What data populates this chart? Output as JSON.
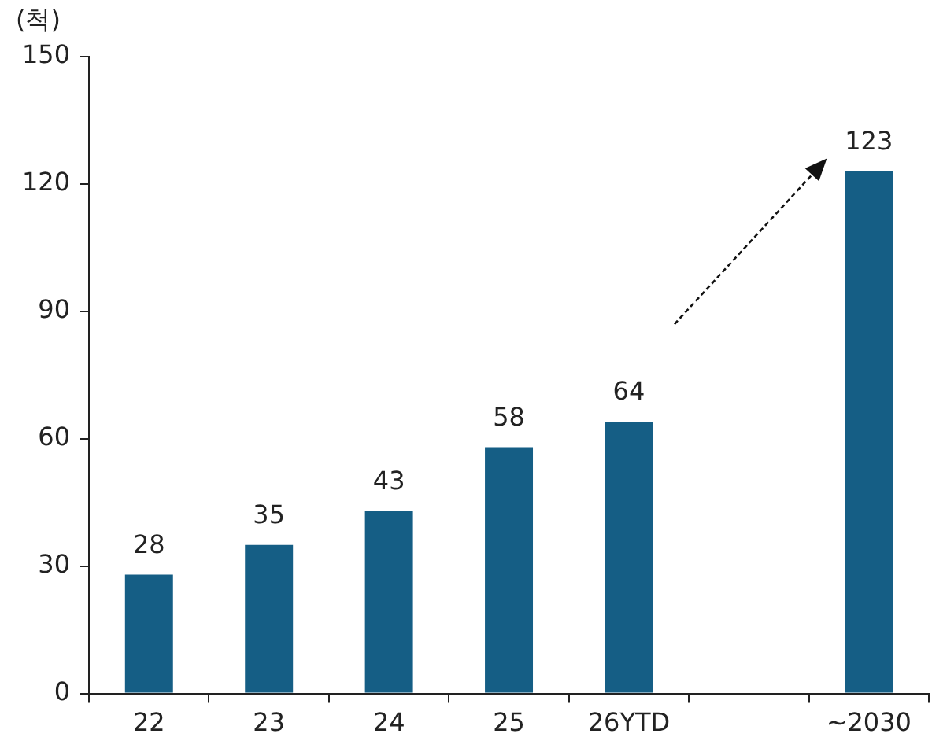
{
  "chart_data": {
    "type": "bar",
    "ylabel": "(척)",
    "categories": [
      "22",
      "23",
      "24",
      "25",
      "26YTD",
      null,
      "~2030"
    ],
    "values": [
      28,
      35,
      43,
      58,
      64,
      null,
      123
    ],
    "color": "#155e85",
    "ylim": [
      0,
      150
    ],
    "yticks": [
      0,
      30,
      60,
      90,
      120,
      150
    ],
    "grid": false,
    "legend": false,
    "data_labels": true
  }
}
